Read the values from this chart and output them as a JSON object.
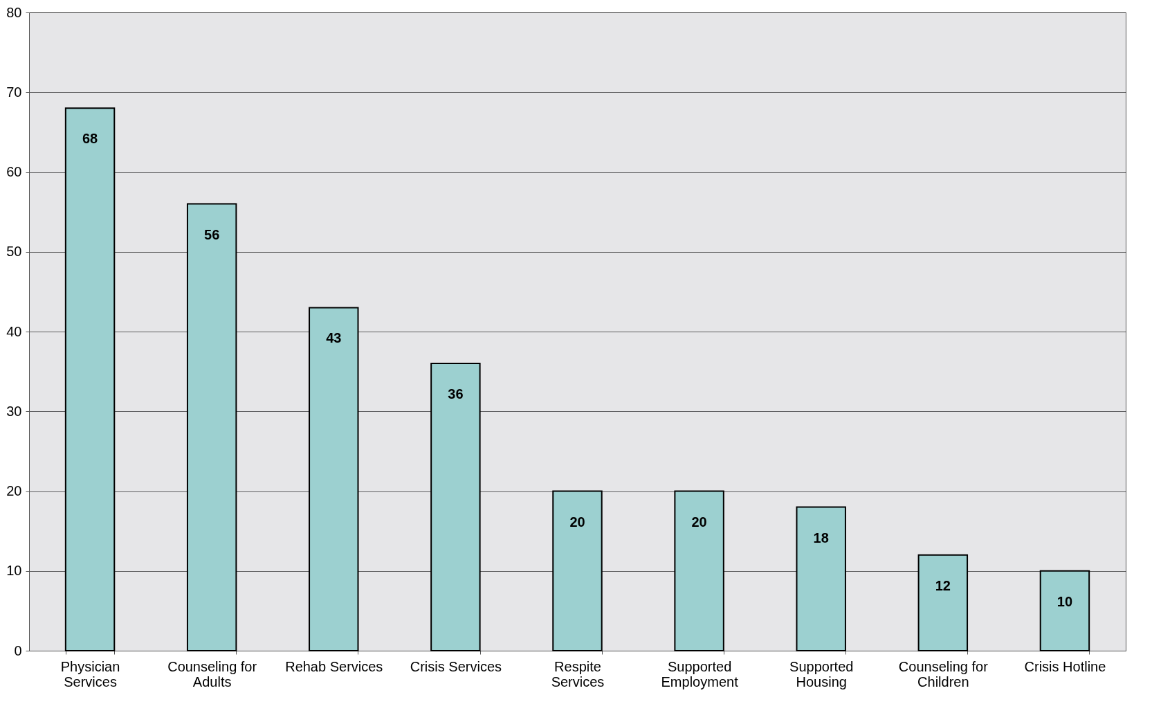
{
  "chart_data": {
    "type": "bar",
    "categories": [
      "Physician Services",
      "Counseling for Adults",
      "Rehab Services",
      "Crisis Services",
      "Respite Services",
      "Supported Employment",
      "Supported Housing",
      "Counseling for Children",
      "Crisis Hotline"
    ],
    "values": [
      68,
      56,
      43,
      36,
      20,
      20,
      18,
      12,
      10
    ],
    "color": "#9cd0d0",
    "ylim": [
      0,
      80
    ],
    "yticks": [
      0,
      10,
      20,
      30,
      40,
      50,
      60,
      70,
      80
    ],
    "grid": "y",
    "data_labels": true
  }
}
